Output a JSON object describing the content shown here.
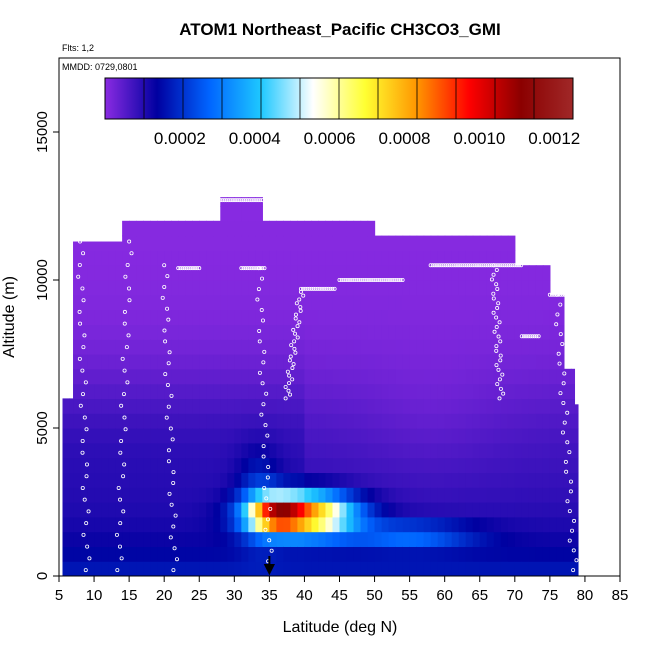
{
  "chart_data": {
    "type": "heatmap",
    "title": "ATOM1 Northeast_Pacific CH3CO3_GMI",
    "annotations": {
      "flights": "Flts: 1,2",
      "dates": "MMDD: 0729,0801"
    },
    "xlabel": "Latitude (deg N)",
    "ylabel": "Altitude (m)",
    "xlim": [
      5,
      85
    ],
    "ylim": [
      0,
      17500
    ],
    "x_ticks": [
      5,
      10,
      15,
      20,
      25,
      30,
      35,
      40,
      45,
      50,
      55,
      60,
      65,
      70,
      75,
      80,
      85
    ],
    "x_tick_labels": [
      "5",
      "10",
      "15",
      "20",
      "25",
      "30",
      "35",
      "40",
      "45",
      "50",
      "55",
      "60",
      "65",
      "70",
      "75",
      "80",
      "85"
    ],
    "y_ticks": [
      0,
      5000,
      10000,
      15000
    ],
    "y_tick_labels": [
      "0",
      "5000",
      "10000",
      "15000"
    ],
    "colorbar": {
      "min": 0,
      "max": 0.00125,
      "ticks": [
        0.0002,
        0.0004,
        0.0006,
        0.0008,
        0.001,
        0.0012
      ],
      "tick_labels": [
        "0.0002",
        "0.0004",
        "0.0006",
        "0.0008",
        "0.0010",
        "0.0012"
      ],
      "divisions": 12,
      "colors": [
        "#8a2be2",
        "#0000a0",
        "#0064ff",
        "#1ec8ff",
        "#ffffff",
        "#ffff32",
        "#ff9600",
        "#ff0000",
        "#8b0000",
        "#a02828"
      ]
    },
    "coverage_columns": [
      [
        5.5,
        7,
        0,
        6000
      ],
      [
        7,
        9,
        0,
        11300
      ],
      [
        9,
        14,
        0,
        11300
      ],
      [
        14,
        21,
        0,
        12000
      ],
      [
        21,
        28,
        0,
        12000
      ],
      [
        28,
        34,
        0,
        12800
      ],
      [
        34,
        40,
        0,
        12000
      ],
      [
        40,
        50,
        0,
        12000
      ],
      [
        50,
        60,
        0,
        11500
      ],
      [
        60,
        70,
        0,
        11500
      ],
      [
        70,
        75,
        0,
        10500
      ],
      [
        75,
        77,
        0,
        9500
      ],
      [
        77,
        78.5,
        0,
        7000
      ],
      [
        78.5,
        79,
        0,
        5800
      ]
    ],
    "field_components": [
      {
        "lat": 40,
        "alt": 2100,
        "slat": 7,
        "salt": 700,
        "amp": 0.00075
      },
      {
        "lat": 36,
        "alt": 2100,
        "slat": 3.5,
        "salt": 550,
        "amp": 0.00045
      },
      {
        "lat": 33.5,
        "alt": 2600,
        "slat": 3,
        "salt": 1500,
        "amp": 0.00012
      },
      {
        "lat": 55,
        "alt": 1400,
        "slat": 9,
        "salt": 450,
        "amp": 0.00018
      }
    ],
    "field_background": {
      "surface": 0.00018,
      "scale_height": 3000,
      "upper": 0.0
    },
    "flight_track": {
      "upper_legs": [
        {
          "lat": [
            28,
            34
          ],
          "alt": 12700
        },
        {
          "lat": [
            22,
            25
          ],
          "alt": 10400
        },
        {
          "lat": [
            31,
            34.5
          ],
          "alt": 10400
        },
        {
          "lat": [
            39.5,
            44.5
          ],
          "alt": 9700
        },
        {
          "lat": [
            45,
            54
          ],
          "alt": 10000
        },
        {
          "lat": [
            58,
            71
          ],
          "alt": 10500
        },
        {
          "lat": [
            71,
            73.5
          ],
          "alt": 8100
        },
        {
          "lat": [
            75,
            78
          ],
          "alt": 9500
        }
      ],
      "profiles": [
        {
          "lat0": 33.5,
          "alt0": 10400,
          "lat1": 35,
          "alt1": 500
        },
        {
          "lat0": 39.5,
          "alt0": 9600,
          "lat1": 37.5,
          "alt1": 6000
        },
        {
          "lat0": 8,
          "alt0": 11300,
          "lat1": 9,
          "alt1": 200
        },
        {
          "lat0": 15,
          "alt0": 11300,
          "lat1": 13.5,
          "alt1": 200
        },
        {
          "lat0": 20,
          "alt0": 10500,
          "lat1": 21.5,
          "alt1": 200
        },
        {
          "lat0": 67,
          "alt0": 10500,
          "lat1": 68,
          "alt1": 6000
        },
        {
          "lat0": 76,
          "alt0": 9500,
          "lat1": 78.5,
          "alt1": 200
        }
      ]
    },
    "marker": {
      "lat": 35,
      "alt": 0,
      "symbol": "arrow-down"
    }
  }
}
